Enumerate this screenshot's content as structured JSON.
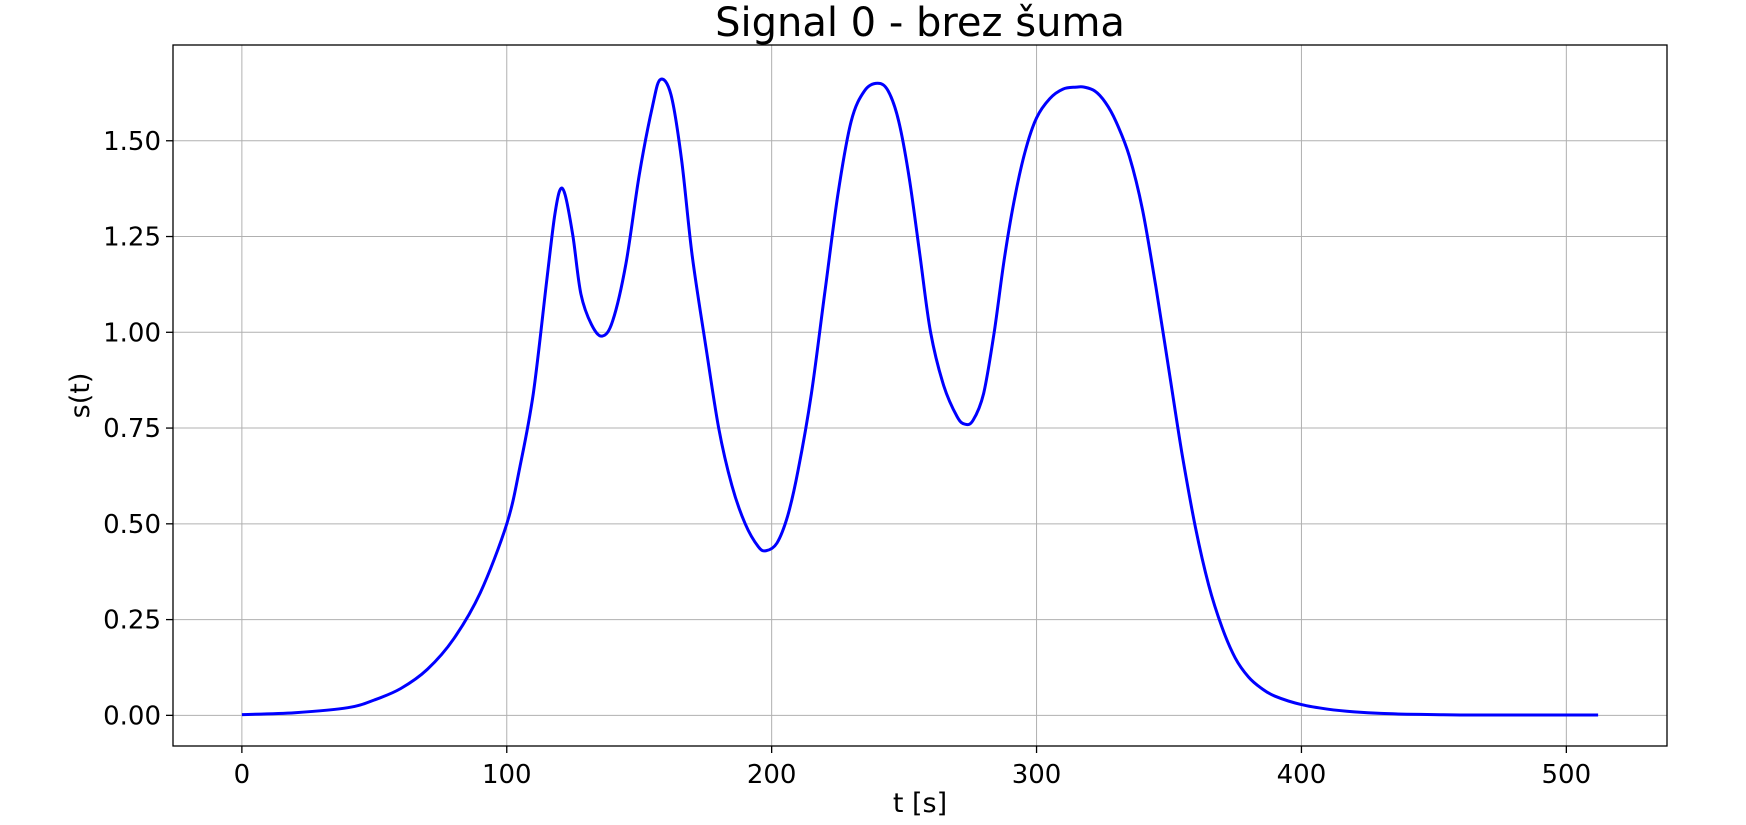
{
  "chart_data": {
    "type": "line",
    "title": "Signal 0 - brez šuma",
    "xlabel": "t [s]",
    "ylabel": "s(t)",
    "xlim": [
      -26,
      538
    ],
    "ylim": [
      -0.08,
      1.75
    ],
    "grid": true,
    "x_ticks": [
      0,
      100,
      200,
      300,
      400,
      500
    ],
    "x_tick_labels": [
      "0",
      "100",
      "200",
      "300",
      "400",
      "500"
    ],
    "y_ticks": [
      0,
      0.25,
      0.5,
      0.75,
      1.0,
      1.25,
      1.5
    ],
    "y_tick_labels": [
      "0.00",
      "0.25",
      "0.50",
      "0.75",
      "1.00",
      "1.25",
      "1.50"
    ],
    "series": [
      {
        "color": "#0000ff",
        "x": [
          0,
          20,
          40,
          50,
          60,
          70,
          80,
          90,
          100,
          105,
          110,
          115,
          118,
          120,
          122,
          125,
          128,
          132,
          136,
          140,
          145,
          150,
          155,
          158,
          162,
          166,
          170,
          175,
          180,
          185,
          190,
          195,
          198,
          202,
          206,
          210,
          215,
          220,
          225,
          230,
          235,
          240,
          244,
          248,
          252,
          256,
          260,
          265,
          270,
          273,
          276,
          280,
          284,
          288,
          292,
          296,
          300,
          305,
          310,
          315,
          318,
          322,
          326,
          330,
          335,
          340,
          345,
          350,
          355,
          360,
          365,
          370,
          375,
          380,
          385,
          390,
          400,
          410,
          420,
          430,
          440,
          450,
          460,
          480,
          500,
          512
        ],
        "y": [
          0.002,
          0.007,
          0.02,
          0.04,
          0.07,
          0.12,
          0.2,
          0.32,
          0.5,
          0.65,
          0.84,
          1.13,
          1.3,
          1.37,
          1.36,
          1.25,
          1.1,
          1.02,
          0.99,
          1.03,
          1.18,
          1.41,
          1.59,
          1.66,
          1.62,
          1.45,
          1.2,
          0.97,
          0.75,
          0.6,
          0.5,
          0.44,
          0.43,
          0.45,
          0.52,
          0.64,
          0.84,
          1.1,
          1.36,
          1.55,
          1.63,
          1.65,
          1.63,
          1.55,
          1.4,
          1.2,
          1.0,
          0.86,
          0.78,
          0.76,
          0.77,
          0.84,
          1.0,
          1.2,
          1.36,
          1.48,
          1.56,
          1.61,
          1.635,
          1.64,
          1.64,
          1.63,
          1.6,
          1.55,
          1.46,
          1.32,
          1.12,
          0.9,
          0.68,
          0.49,
          0.34,
          0.23,
          0.15,
          0.1,
          0.07,
          0.05,
          0.028,
          0.016,
          0.009,
          0.005,
          0.003,
          0.002,
          0.001,
          0.001,
          0.001,
          0.001
        ]
      }
    ]
  }
}
